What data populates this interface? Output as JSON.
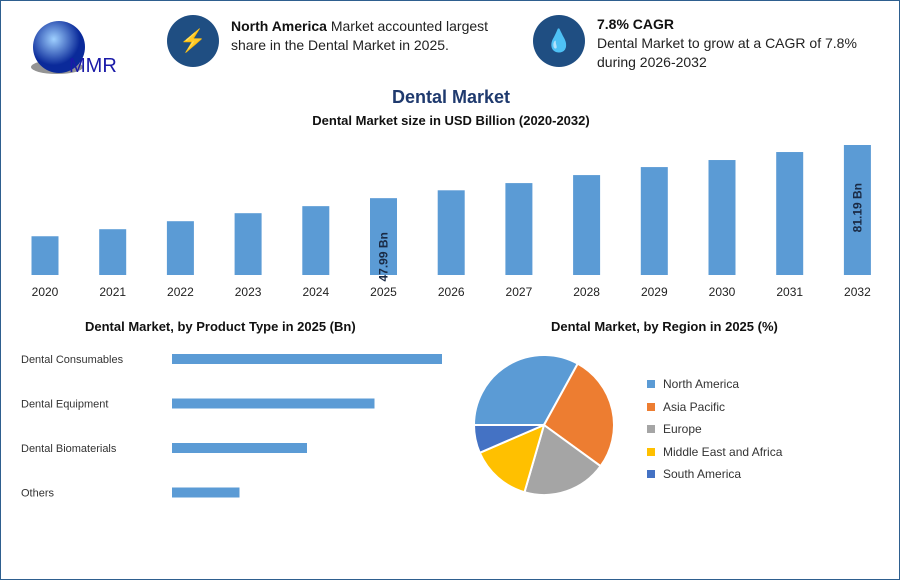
{
  "logo": {
    "text": "MMR"
  },
  "header": {
    "fact1": {
      "icon": "lightning-icon",
      "bold": "North America",
      "text": " Market accounted largest share in the Dental Market in 2025."
    },
    "fact2": {
      "icon": "growth-drop-icon",
      "bold": "7.8% CAGR",
      "text": "Dental Market to grow at a CAGR of 7.8% during 2026-2032"
    }
  },
  "chart_data": [
    {
      "type": "bar",
      "title": "Dental Market",
      "subtitle": "Dental Market size in USD Billion (2020-2032)",
      "categories": [
        "2020",
        "2021",
        "2022",
        "2023",
        "2024",
        "2025",
        "2026",
        "2027",
        "2028",
        "2029",
        "2030",
        "2031",
        "2032"
      ],
      "values": [
        24.2,
        28.6,
        33.6,
        38.6,
        43.0,
        47.99,
        52.9,
        57.4,
        62.4,
        67.4,
        71.8,
        76.8,
        81.19
      ],
      "data_labels": {
        "2025": "47.99 Bn",
        "2032": "81.19 Bn"
      },
      "ylim": [
        0,
        85
      ],
      "color": "#5b9bd5"
    },
    {
      "type": "bar",
      "orientation": "horizontal",
      "title": "Dental Market, by Product Type in 2025 (Bn)",
      "categories": [
        "Dental Consumables",
        "Dental Equipment",
        "Dental Biomaterials",
        "Others"
      ],
      "values": [
        20,
        15,
        10,
        5
      ],
      "xlim": [
        0,
        20
      ],
      "color": "#5b9bd5"
    },
    {
      "type": "pie",
      "title": "Dental Market, by Region in 2025 (%)",
      "labels": [
        "North America",
        "Asia Pacific",
        "Europe",
        "Middle East and Africa",
        "South America"
      ],
      "values": [
        33,
        27,
        19.5,
        14,
        6.5
      ],
      "colors": [
        "#5b9bd5",
        "#ed7d31",
        "#a5a5a5",
        "#ffc000",
        "#4472c4"
      ],
      "legend": "right"
    }
  ]
}
